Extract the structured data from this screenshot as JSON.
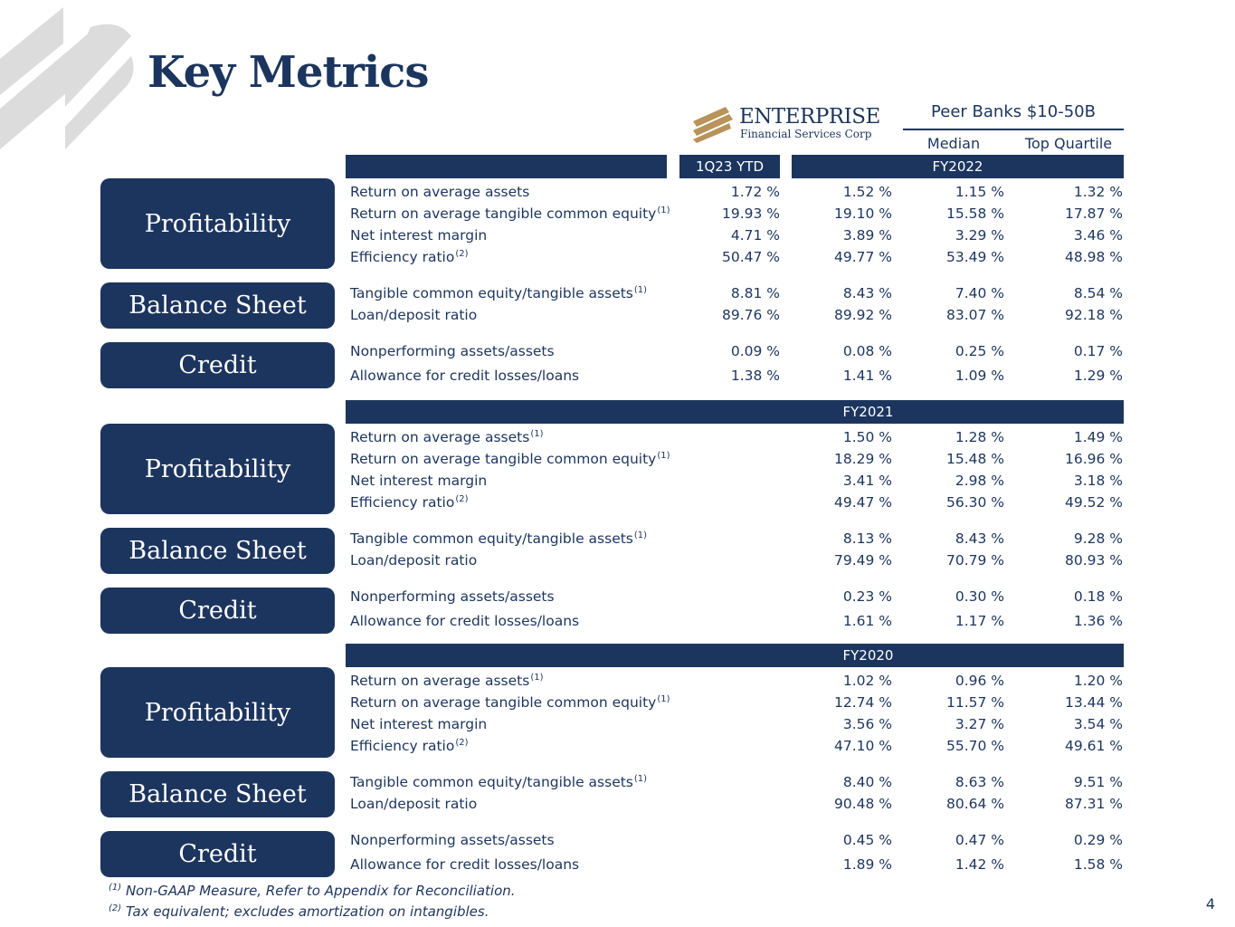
{
  "title": "Key Metrics",
  "brand": {
    "name": "ENTERPRISE",
    "subtitle": "Financial Services Corp"
  },
  "peer_header": "Peer Banks $10-50B",
  "col_median": "Median",
  "col_top_quartile": "Top Quartile",
  "period_1q23": "1Q23 YTD",
  "sections": [
    {
      "period": "FY2022",
      "groups": [
        {
          "name": "Profitability",
          "rows": [
            {
              "label": "Return on average assets",
              "note": "",
              "c1": "1.72 %",
              "c2": "1.52 %",
              "c3": "1.15 %",
              "c4": "1.32 %"
            },
            {
              "label": "Return on average tangible common equity",
              "note": "(1)",
              "c1": "19.93 %",
              "c2": "19.10 %",
              "c3": "15.58 %",
              "c4": "17.87 %"
            },
            {
              "label": "Net interest margin",
              "note": "",
              "c1": "4.71 %",
              "c2": "3.89 %",
              "c3": "3.29 %",
              "c4": "3.46 %"
            },
            {
              "label": "Efficiency ratio",
              "note": "(2)",
              "c1": "50.47 %",
              "c2": "49.77 %",
              "c3": "53.49 %",
              "c4": "48.98 %"
            }
          ]
        },
        {
          "name": "Balance Sheet",
          "rows": [
            {
              "label": "Tangible common equity/tangible assets",
              "note": "(1)",
              "c1": "8.81 %",
              "c2": "8.43 %",
              "c3": "7.40 %",
              "c4": "8.54 %"
            },
            {
              "label": "Loan/deposit ratio",
              "note": "",
              "c1": "89.76 %",
              "c2": "89.92 %",
              "c3": "83.07 %",
              "c4": "92.18 %"
            }
          ]
        },
        {
          "name": "Credit",
          "rows": [
            {
              "label": "Nonperforming assets/assets",
              "note": "",
              "c1": "0.09 %",
              "c2": "0.08 %",
              "c3": "0.25 %",
              "c4": "0.17 %"
            },
            {
              "label": "Allowance for credit losses/loans",
              "note": "",
              "c1": "1.38 %",
              "c2": "1.41 %",
              "c3": "1.09 %",
              "c4": "1.29 %"
            }
          ]
        }
      ]
    },
    {
      "period": "FY2021",
      "groups": [
        {
          "name": "Profitability",
          "rows": [
            {
              "label": "Return on average assets",
              "note": "(1)",
              "c1": "",
              "c2": "1.50 %",
              "c3": "1.28 %",
              "c4": "1.49 %"
            },
            {
              "label": "Return on average tangible common equity",
              "note": "(1)",
              "c1": "",
              "c2": "18.29 %",
              "c3": "15.48 %",
              "c4": "16.96 %"
            },
            {
              "label": "Net interest margin",
              "note": "",
              "c1": "",
              "c2": "3.41 %",
              "c3": "2.98 %",
              "c4": "3.18 %"
            },
            {
              "label": "Efficiency ratio",
              "note": "(2)",
              "c1": "",
              "c2": "49.47 %",
              "c3": "56.30 %",
              "c4": "49.52 %"
            }
          ]
        },
        {
          "name": "Balance Sheet",
          "rows": [
            {
              "label": "Tangible common equity/tangible assets",
              "note": "(1)",
              "c1": "",
              "c2": "8.13 %",
              "c3": "8.43 %",
              "c4": "9.28 %"
            },
            {
              "label": "Loan/deposit ratio",
              "note": "",
              "c1": "",
              "c2": "79.49 %",
              "c3": "70.79 %",
              "c4": "80.93 %"
            }
          ]
        },
        {
          "name": "Credit",
          "rows": [
            {
              "label": "Nonperforming assets/assets",
              "note": "",
              "c1": "",
              "c2": "0.23 %",
              "c3": "0.30 %",
              "c4": "0.18 %"
            },
            {
              "label": "Allowance for credit losses/loans",
              "note": "",
              "c1": "",
              "c2": "1.61 %",
              "c3": "1.17 %",
              "c4": "1.36 %"
            }
          ]
        }
      ]
    },
    {
      "period": "FY2020",
      "groups": [
        {
          "name": "Profitability",
          "rows": [
            {
              "label": "Return on average assets",
              "note": "(1)",
              "c1": "",
              "c2": "1.02 %",
              "c3": "0.96 %",
              "c4": "1.20 %"
            },
            {
              "label": "Return on average tangible common equity",
              "note": "(1)",
              "c1": "",
              "c2": "12.74 %",
              "c3": "11.57 %",
              "c4": "13.44 %"
            },
            {
              "label": "Net interest margin",
              "note": "",
              "c1": "",
              "c2": "3.56 %",
              "c3": "3.27 %",
              "c4": "3.54 %"
            },
            {
              "label": "Efficiency ratio",
              "note": "(2)",
              "c1": "",
              "c2": "47.10 %",
              "c3": "55.70 %",
              "c4": "49.61 %"
            }
          ]
        },
        {
          "name": "Balance Sheet",
          "rows": [
            {
              "label": "Tangible common equity/tangible assets",
              "note": "(1)",
              "c1": "",
              "c2": "8.40 %",
              "c3": "8.63 %",
              "c4": "9.51 %"
            },
            {
              "label": "Loan/deposit ratio",
              "note": "",
              "c1": "",
              "c2": "90.48 %",
              "c3": "80.64 %",
              "c4": "87.31 %"
            }
          ]
        },
        {
          "name": "Credit",
          "rows": [
            {
              "label": "Nonperforming assets/assets",
              "note": "",
              "c1": "",
              "c2": "0.45 %",
              "c3": "0.47 %",
              "c4": "0.29 %"
            },
            {
              "label": "Allowance for credit losses/loans",
              "note": "",
              "c1": "",
              "c2": "1.89 %",
              "c3": "1.42 %",
              "c4": "1.58 %"
            }
          ]
        }
      ]
    }
  ],
  "footnotes": [
    {
      "mark": "(1)",
      "text": " Non-GAAP Measure, Refer to Appendix for Reconciliation."
    },
    {
      "mark": "(2)",
      "text": " Tax equivalent; excludes amortization on intangibles."
    }
  ],
  "page_number": "4",
  "colors": {
    "navy": "#1c355e",
    "gold": "#b8935a",
    "stripe_gray": "#dcdcdc"
  }
}
